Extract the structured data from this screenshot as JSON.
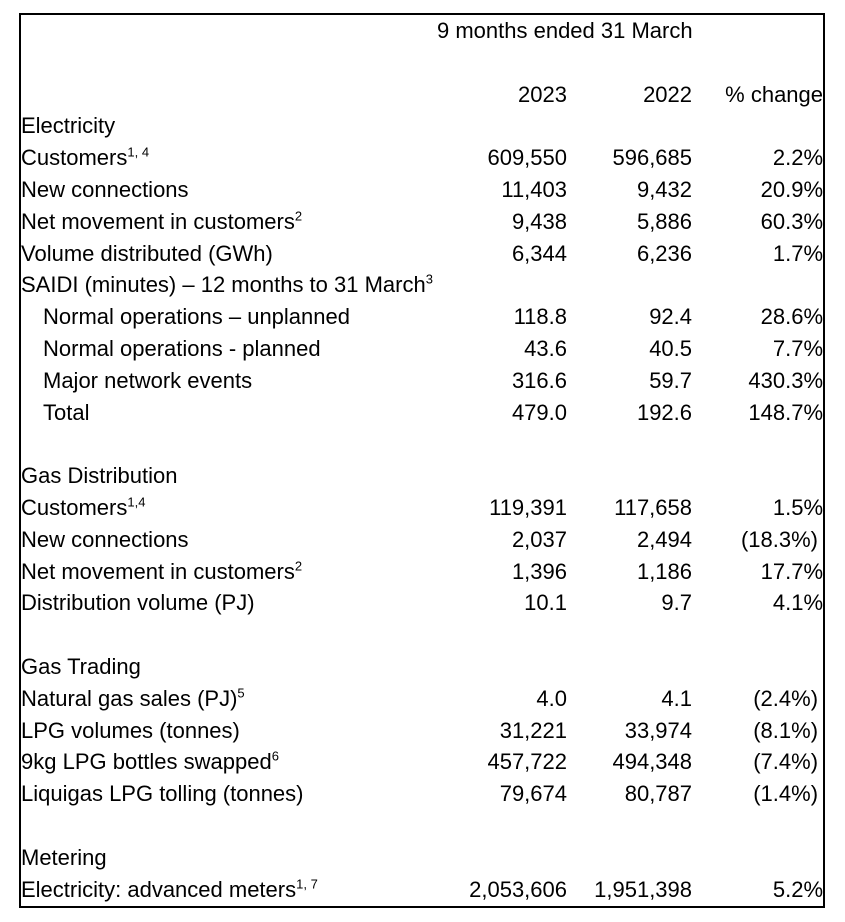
{
  "colors": {
    "text": "#000000",
    "border": "#000000",
    "background": "#ffffff"
  },
  "table": {
    "header": {
      "period": "9 months ended 31 March",
      "col_2023": "2023",
      "col_2022": "2022",
      "col_change": "% change"
    },
    "sections": [
      {
        "title": "Electricity",
        "rows": [
          {
            "label": "Customers",
            "sup": "1, 4",
            "v2023": "609,550",
            "v2022": "596,685",
            "change": "2.2%"
          },
          {
            "label": "New connections",
            "v2023": "11,403",
            "v2022": "9,432",
            "change": "20.9%"
          },
          {
            "label": "Net movement in customers",
            "sup": "2",
            "v2023": "9,438",
            "v2022": "5,886",
            "change": "60.3%"
          },
          {
            "label": "Volume distributed (GWh)",
            "v2023": "6,344",
            "v2022": "6,236",
            "change": "1.7%"
          },
          {
            "label": "SAIDI (minutes) – 12 months to 31 March",
            "sup": "3",
            "v2023": "",
            "v2022": "",
            "change": ""
          },
          {
            "label": "Normal operations – unplanned",
            "indent": true,
            "v2023": "118.8",
            "v2022": "92.4",
            "change": "28.6%"
          },
          {
            "label": "Normal operations - planned",
            "indent": true,
            "v2023": "43.6",
            "v2022": "40.5",
            "change": "7.7%"
          },
          {
            "label": "Major network events",
            "indent": true,
            "v2023": "316.6",
            "v2022": "59.7",
            "change": "430.3%"
          },
          {
            "label": "Total",
            "indent": true,
            "v2023": "479.0",
            "v2022": "192.6",
            "change": "148.7%"
          }
        ]
      },
      {
        "title": "Gas Distribution",
        "rows": [
          {
            "label": "Customers",
            "sup": "1,4",
            "v2023": "119,391",
            "v2022": "117,658",
            "change": "1.5%"
          },
          {
            "label": "New connections",
            "v2023": "2,037",
            "v2022": "2,494",
            "change": "(18.3%)"
          },
          {
            "label": "Net movement in customers",
            "sup": "2",
            "v2023": "1,396",
            "v2022": "1,186",
            "change": "17.7%"
          },
          {
            "label": "Distribution volume (PJ)",
            "v2023": "10.1",
            "v2022": "9.7",
            "change": "4.1%"
          }
        ]
      },
      {
        "title": "Gas Trading",
        "rows": [
          {
            "label": "Natural gas sales (PJ)",
            "sup": "5",
            "v2023": "4.0",
            "v2022": "4.1",
            "change": "(2.4%)"
          },
          {
            "label": "LPG volumes (tonnes)",
            "v2023": "31,221",
            "v2022": "33,974",
            "change": "(8.1%)"
          },
          {
            "label": "9kg LPG bottles swapped",
            "sup": "6",
            "v2023": "457,722",
            "v2022": "494,348",
            "change": "(7.4%)"
          },
          {
            "label": "Liquigas LPG tolling (tonnes)",
            "v2023": "79,674",
            "v2022": "80,787",
            "change": "(1.4%)"
          }
        ]
      },
      {
        "title": "Metering",
        "rows": [
          {
            "label": "Electricity: advanced meters",
            "sup": "1, 7",
            "v2023": "2,053,606",
            "v2022": "1,951,398",
            "change": "5.2%"
          }
        ]
      }
    ]
  }
}
